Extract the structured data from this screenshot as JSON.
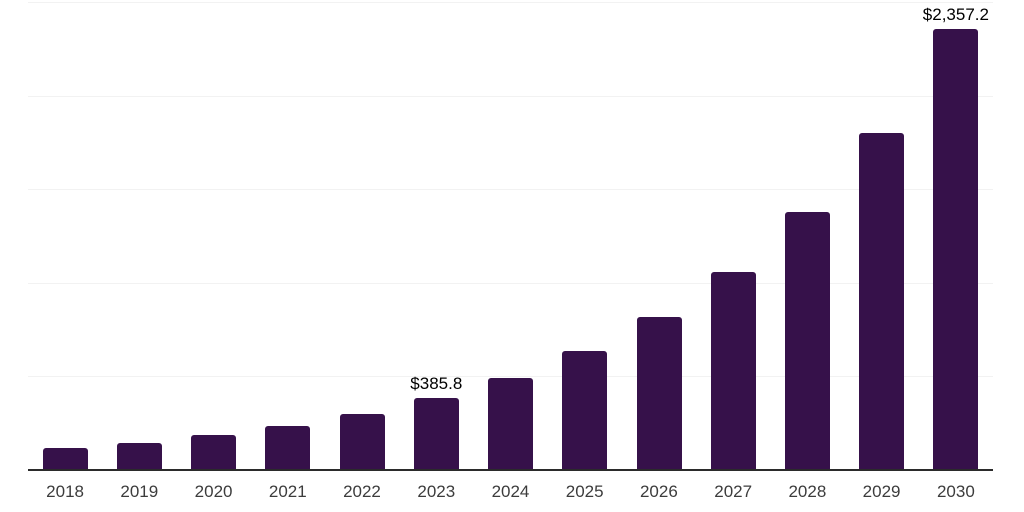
{
  "chart": {
    "title": "",
    "colors": {
      "bar": "#36114a",
      "gridline": "#f2f2f2",
      "axis_line": "#2b2b2b",
      "tick_label": "#3c3c3c",
      "data_label": "#000000",
      "background": "#ffffff"
    }
  },
  "chart_data": {
    "type": "bar",
    "title": "",
    "xlabel": "",
    "ylabel": "",
    "categories": [
      "2018",
      "2019",
      "2020",
      "2021",
      "2022",
      "2023",
      "2024",
      "2025",
      "2026",
      "2027",
      "2028",
      "2029",
      "2030"
    ],
    "values": [
      117,
      143,
      187,
      235,
      300,
      385.8,
      491,
      635,
      817,
      1057,
      1377,
      1803,
      2357.2
    ],
    "labeled_points": {
      "2023": "$385.8",
      "2030": "$2,357.2"
    },
    "ylim": [
      0,
      2500
    ],
    "gridlines": [
      500,
      1000,
      1500,
      2000,
      2500
    ],
    "grid": "horizontal",
    "legend": "none",
    "y_axis_tick_labels": "hidden"
  }
}
